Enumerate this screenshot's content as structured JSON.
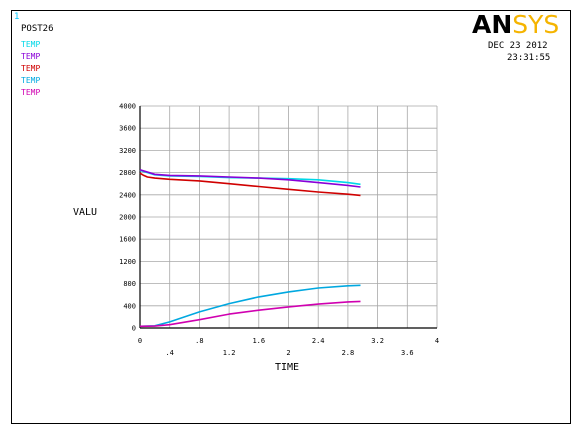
{
  "window_number": "1",
  "post_name": "POST26",
  "logo": {
    "part1": "AN",
    "part2": "SYS"
  },
  "date": "DEC 23 2012",
  "time": "23:31:55",
  "legend": [
    {
      "label": "TEMP",
      "color": "#00d8e8"
    },
    {
      "label": "TEMP",
      "color": "#8a00d8"
    },
    {
      "label": "TEMP",
      "color": "#d00000"
    },
    {
      "label": "TEMP",
      "color": "#00a8e0"
    },
    {
      "label": "TEMP",
      "color": "#d000b0"
    }
  ],
  "chart_data": {
    "type": "line",
    "xlabel": "TIME",
    "ylabel": "VALU",
    "xlim": [
      0,
      4
    ],
    "ylim": [
      0,
      4000
    ],
    "x_ticks_row1": [
      "0",
      ".8",
      "1.6",
      "2.4",
      "3.2",
      "4"
    ],
    "x_ticks_row2": [
      ".4",
      "1.2",
      "2",
      "2.8",
      "3.6"
    ],
    "y_ticks": [
      "0",
      "400",
      "800",
      "1200",
      "1600",
      "2000",
      "2400",
      "2800",
      "3200",
      "3600",
      "4000"
    ],
    "grid": true,
    "series": [
      {
        "color": "#00d8e8",
        "x": [
          0,
          0.1,
          0.2,
          0.4,
          0.8,
          1.2,
          1.6,
          2.0,
          2.4,
          2.8,
          2.97
        ],
        "y": [
          2840,
          2800,
          2760,
          2740,
          2730,
          2710,
          2700,
          2690,
          2670,
          2620,
          2590
        ]
      },
      {
        "color": "#8a00d8",
        "x": [
          0,
          0.1,
          0.2,
          0.4,
          0.8,
          1.2,
          1.6,
          2.0,
          2.4,
          2.8,
          2.97
        ],
        "y": [
          2850,
          2810,
          2770,
          2750,
          2740,
          2720,
          2700,
          2670,
          2620,
          2570,
          2540
        ]
      },
      {
        "color": "#d00000",
        "x": [
          0,
          0.05,
          0.1,
          0.2,
          0.4,
          0.8,
          1.2,
          1.6,
          2.0,
          2.4,
          2.8,
          2.97
        ],
        "y": [
          2790,
          2750,
          2720,
          2700,
          2680,
          2650,
          2600,
          2550,
          2500,
          2450,
          2410,
          2390
        ]
      },
      {
        "color": "#00a8e0",
        "x": [
          0,
          0.2,
          0.4,
          0.8,
          1.2,
          1.6,
          2.0,
          2.4,
          2.8,
          2.97
        ],
        "y": [
          30,
          40,
          110,
          290,
          440,
          560,
          650,
          720,
          760,
          770
        ]
      },
      {
        "color": "#d000b0",
        "x": [
          0,
          0.2,
          0.4,
          0.8,
          1.2,
          1.6,
          2.0,
          2.4,
          2.8,
          2.97
        ],
        "y": [
          30,
          35,
          60,
          150,
          250,
          320,
          380,
          430,
          470,
          480
        ]
      }
    ]
  }
}
